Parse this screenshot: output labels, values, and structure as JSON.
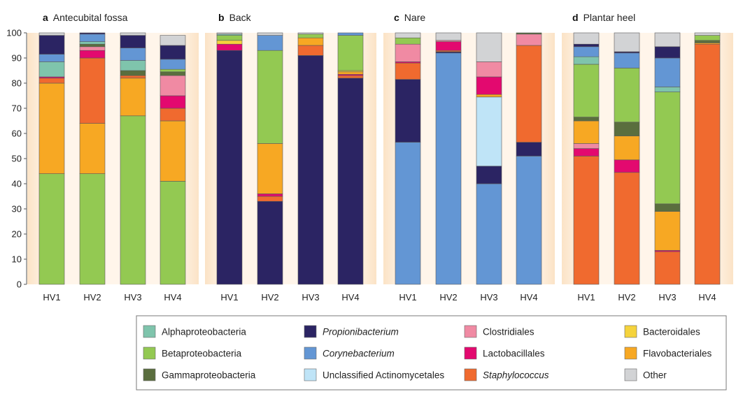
{
  "legend": [
    {
      "key": "alpha",
      "label": "Alphaproteobacteria",
      "color": "#7fc4ac",
      "italic": false
    },
    {
      "key": "prop",
      "label": "Propionibacterium",
      "color": "#2b2463",
      "italic": true
    },
    {
      "key": "clos",
      "label": "Clostridiales",
      "color": "#f08aa3",
      "italic": false
    },
    {
      "key": "bact",
      "label": "Bacteroidales",
      "color": "#f5d33c",
      "italic": false
    },
    {
      "key": "beta",
      "label": "Betaproteobacteria",
      "color": "#93c952",
      "italic": false
    },
    {
      "key": "cory",
      "label": "Corynebacterium",
      "color": "#6396d4",
      "italic": true
    },
    {
      "key": "lact",
      "label": "Lactobacillales",
      "color": "#e3096f",
      "italic": false
    },
    {
      "key": "flav",
      "label": "Flavobacteriales",
      "color": "#f7a823",
      "italic": false
    },
    {
      "key": "gamma",
      "label": "Gammaproteobacteria",
      "color": "#5a6e3e",
      "italic": false
    },
    {
      "key": "uncl",
      "label": "Unclassified Actinomycetales",
      "color": "#bfe4f7",
      "italic": false
    },
    {
      "key": "staph",
      "label": "Staphylococcus",
      "color": "#f06a2f",
      "italic": true
    },
    {
      "key": "other",
      "label": "Other",
      "color": "#d2d3d5",
      "italic": false
    }
  ],
  "chart_data": {
    "type": "bar",
    "stacked": true,
    "ylim": [
      0,
      100
    ],
    "yticks": [
      0,
      10,
      20,
      30,
      40,
      50,
      60,
      70,
      80,
      90,
      100
    ],
    "categories": [
      "HV1",
      "HV2",
      "HV3",
      "HV4"
    ],
    "panels": [
      {
        "letter": "a",
        "title": "Antecubital fossa",
        "bars": [
          {
            "name": "HV1",
            "segments": [
              [
                "beta",
                44
              ],
              [
                "flav",
                36
              ],
              [
                "staph",
                2
              ],
              [
                "lact",
                0.5
              ],
              [
                "alpha",
                6
              ],
              [
                "cory",
                3
              ],
              [
                "prop",
                7.5
              ],
              [
                "other",
                1
              ]
            ]
          },
          {
            "name": "HV2",
            "segments": [
              [
                "beta",
                44
              ],
              [
                "flav",
                20
              ],
              [
                "staph",
                26
              ],
              [
                "lact",
                3
              ],
              [
                "clos",
                1.5
              ],
              [
                "gamma",
                1
              ],
              [
                "alpha",
                1
              ],
              [
                "cory",
                3
              ],
              [
                "prop",
                0.5
              ]
            ]
          },
          {
            "name": "HV3",
            "segments": [
              [
                "beta",
                67
              ],
              [
                "flav",
                15
              ],
              [
                "staph",
                1
              ],
              [
                "gamma",
                2
              ],
              [
                "alpha",
                4
              ],
              [
                "cory",
                5
              ],
              [
                "prop",
                5
              ],
              [
                "other",
                1
              ]
            ]
          },
          {
            "name": "HV4",
            "segments": [
              [
                "beta",
                41
              ],
              [
                "flav",
                24
              ],
              [
                "staph",
                5
              ],
              [
                "lact",
                5
              ],
              [
                "clos",
                8
              ],
              [
                "gamma",
                1.5
              ],
              [
                "beta",
                1
              ],
              [
                "cory",
                4
              ],
              [
                "prop",
                5.5
              ],
              [
                "other",
                4
              ]
            ]
          }
        ]
      },
      {
        "letter": "b",
        "title": "Back",
        "bars": [
          {
            "name": "HV1",
            "segments": [
              [
                "prop",
                93
              ],
              [
                "lact",
                2.5
              ],
              [
                "bact",
                1.5
              ],
              [
                "beta",
                2
              ],
              [
                "alpha",
                0.5
              ],
              [
                "other",
                0.5
              ]
            ]
          },
          {
            "name": "HV2",
            "segments": [
              [
                "prop",
                33
              ],
              [
                "staph",
                2
              ],
              [
                "lact",
                1
              ],
              [
                "flav",
                20
              ],
              [
                "beta",
                37
              ],
              [
                "cory",
                6
              ],
              [
                "other",
                1
              ]
            ]
          },
          {
            "name": "HV3",
            "segments": [
              [
                "prop",
                91
              ],
              [
                "staph",
                4
              ],
              [
                "flav",
                3
              ],
              [
                "beta",
                1.5
              ],
              [
                "other",
                0.5
              ]
            ]
          },
          {
            "name": "HV4",
            "segments": [
              [
                "prop",
                82
              ],
              [
                "staph",
                1
              ],
              [
                "lact",
                0.5
              ],
              [
                "flav",
                1
              ],
              [
                "bact",
                0.5
              ],
              [
                "beta",
                14
              ],
              [
                "cory",
                1
              ]
            ]
          }
        ]
      },
      {
        "letter": "c",
        "title": "Nare",
        "bars": [
          {
            "name": "HV1",
            "segments": [
              [
                "cory",
                56.5
              ],
              [
                "prop",
                25
              ],
              [
                "staph",
                6.5
              ],
              [
                "lact",
                0.5
              ],
              [
                "clos",
                7
              ],
              [
                "beta",
                2.5
              ],
              [
                "other",
                2
              ]
            ]
          },
          {
            "name": "HV2",
            "segments": [
              [
                "cory",
                92
              ],
              [
                "prop",
                0.5
              ],
              [
                "staph",
                0.5
              ],
              [
                "lact",
                3.5
              ],
              [
                "clos",
                0.5
              ],
              [
                "other",
                3
              ]
            ]
          },
          {
            "name": "HV3",
            "segments": [
              [
                "cory",
                40
              ],
              [
                "prop",
                7
              ],
              [
                "uncl",
                27.5
              ],
              [
                "flav",
                1
              ],
              [
                "lact",
                7
              ],
              [
                "clos",
                6
              ],
              [
                "other",
                11.5
              ]
            ]
          },
          {
            "name": "HV4",
            "segments": [
              [
                "cory",
                51
              ],
              [
                "prop",
                5.5
              ],
              [
                "staph",
                38.5
              ],
              [
                "clos",
                4.5
              ],
              [
                "gamma",
                0.5
              ]
            ]
          }
        ]
      },
      {
        "letter": "d",
        "title": "Plantar heel",
        "bars": [
          {
            "name": "HV1",
            "segments": [
              [
                "staph",
                51
              ],
              [
                "lact",
                3
              ],
              [
                "clos",
                2
              ],
              [
                "flav",
                9
              ],
              [
                "gamma",
                1.5
              ],
              [
                "beta",
                21
              ],
              [
                "alpha",
                3
              ],
              [
                "cory",
                4
              ],
              [
                "prop",
                1
              ],
              [
                "other",
                4.5
              ]
            ]
          },
          {
            "name": "HV2",
            "segments": [
              [
                "staph",
                44.5
              ],
              [
                "lact",
                5
              ],
              [
                "flav",
                9.5
              ],
              [
                "gamma",
                5.5
              ],
              [
                "beta",
                21.5
              ],
              [
                "cory",
                6
              ],
              [
                "prop",
                0.5
              ],
              [
                "other",
                7.5
              ]
            ]
          },
          {
            "name": "HV3",
            "segments": [
              [
                "staph",
                13
              ],
              [
                "lact",
                0.5
              ],
              [
                "flav",
                15.5
              ],
              [
                "gamma",
                3
              ],
              [
                "beta",
                44.5
              ],
              [
                "alpha",
                2
              ],
              [
                "cory",
                11.5
              ],
              [
                "prop",
                4.5
              ],
              [
                "other",
                5.5
              ]
            ]
          },
          {
            "name": "HV4",
            "segments": [
              [
                "staph",
                95.5
              ],
              [
                "flav",
                0.5
              ],
              [
                "gamma",
                1
              ],
              [
                "beta",
                2
              ],
              [
                "other",
                1
              ]
            ]
          }
        ]
      }
    ]
  }
}
